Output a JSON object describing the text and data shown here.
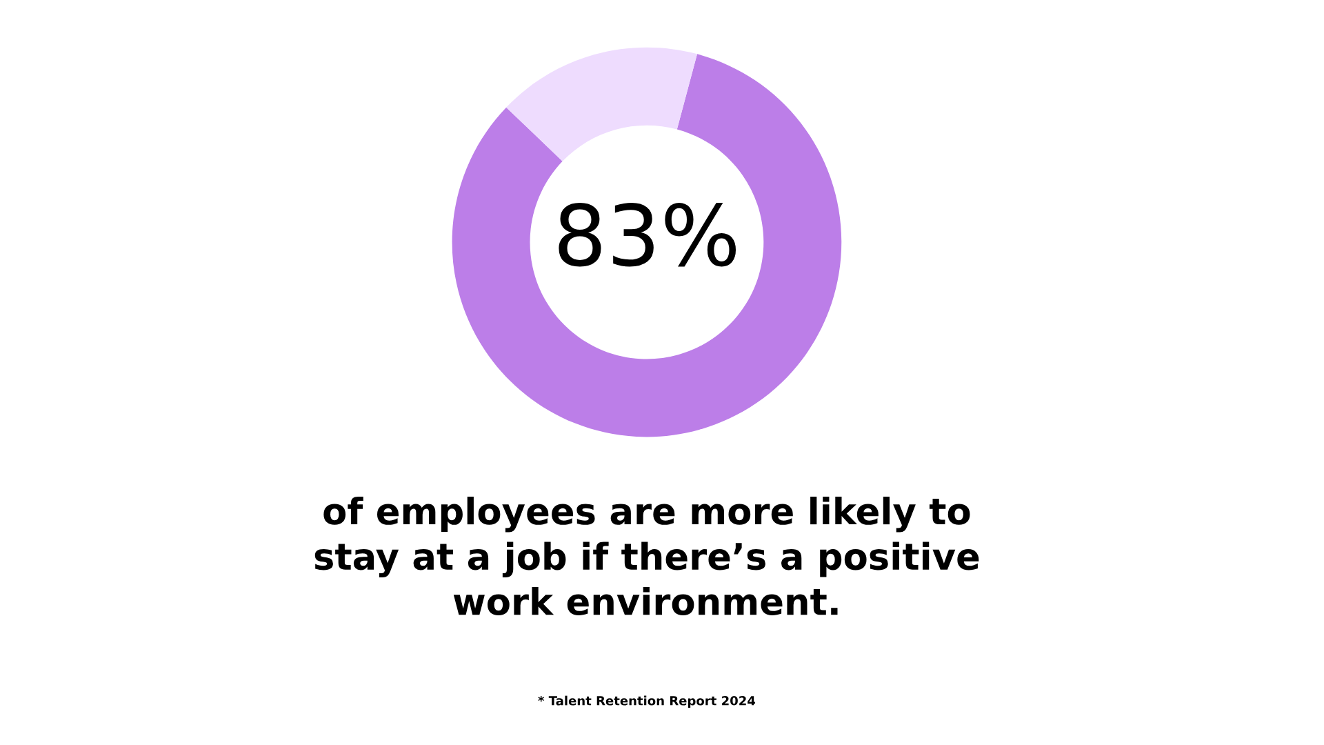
{
  "chart_data": {
    "type": "donut",
    "categories": [
      null,
      null
    ],
    "values": [
      83,
      17
    ],
    "colors": [
      "#bc7ee8",
      "#eedcfe"
    ],
    "value_labels": [
      "83%",
      null
    ],
    "subtitle": "of employees are more likely to\nstay at a job if there’s a positive\nwork environment.",
    "annotations": [
      "* Talent Retention Report 2024"
    ],
    "legend": false
  }
}
